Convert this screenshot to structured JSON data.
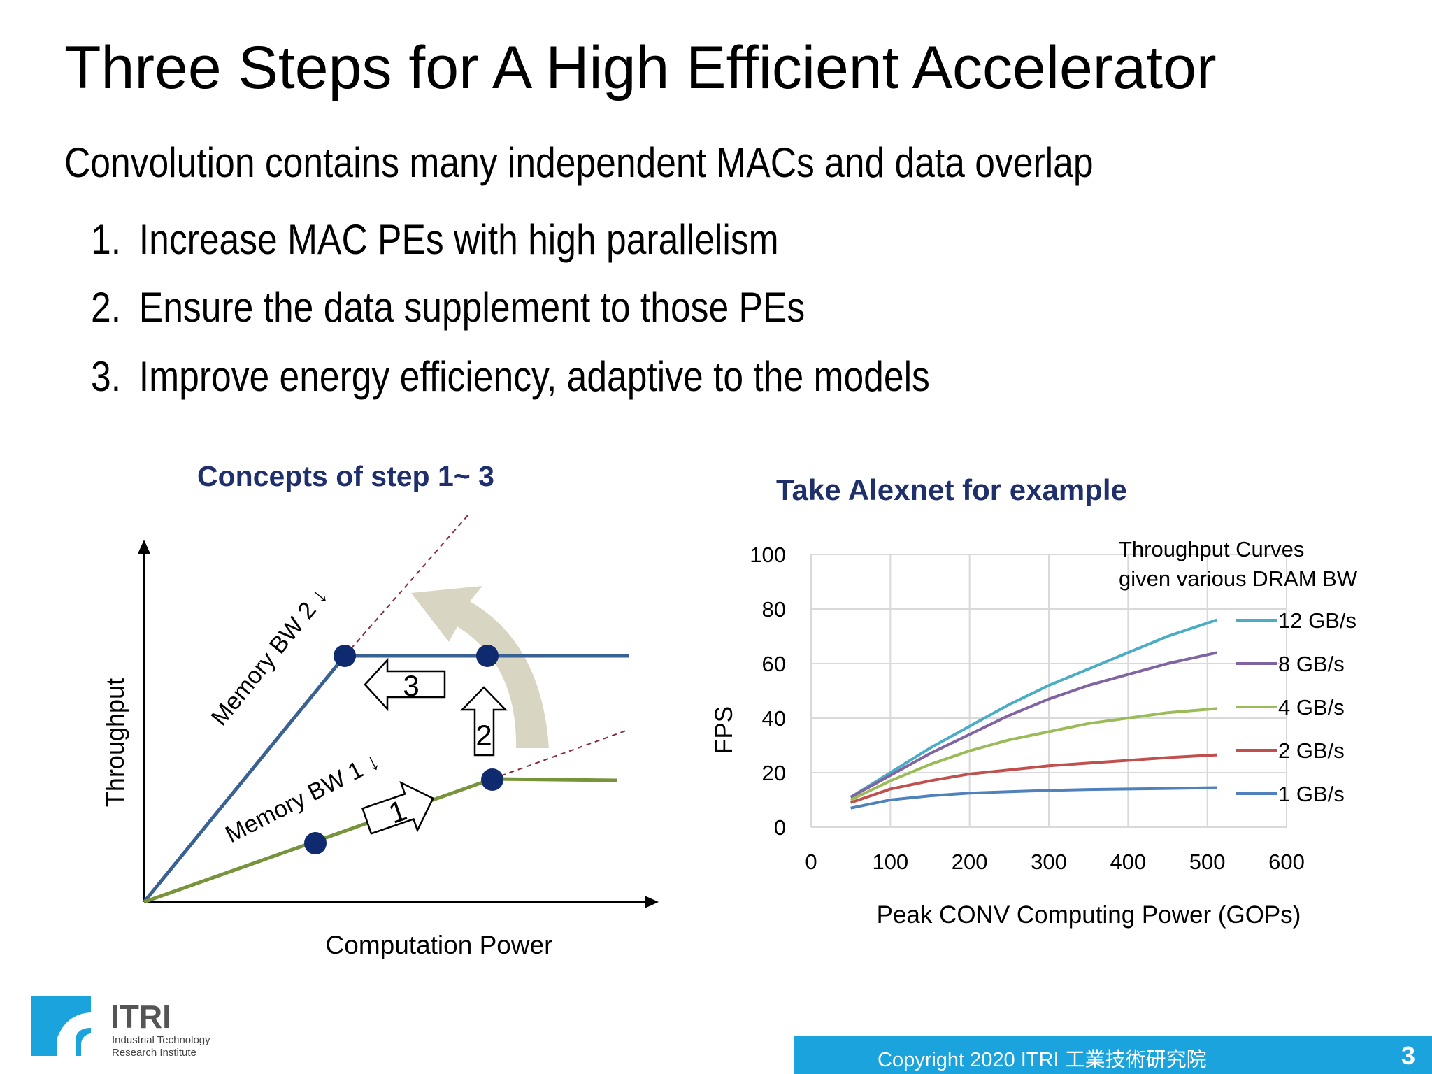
{
  "slide": {
    "title": "Three Steps for A High Efficient Accelerator",
    "subtitle": "Convolution contains many independent MACs and data overlap",
    "steps": [
      {
        "num": "1.",
        "text": "Increase MAC PEs with high parallelism"
      },
      {
        "num": "2.",
        "text": "Ensure the data supplement to those PEs"
      },
      {
        "num": "3.",
        "text": "Improve energy efficiency, adaptive to the models"
      }
    ]
  },
  "concept_diagram": {
    "title": "Concepts of step 1~ 3",
    "y_label": "Throughput",
    "x_label": "Computation Power",
    "line1_label": "Memory BW 1 ↓",
    "line2_label": "Memory BW 2 ↓",
    "arrow1_label": "1",
    "arrow2_label": "2",
    "arrow3_label": "3",
    "colors": {
      "bw1": "#77933c",
      "bw2": "#3a6194",
      "dot": "#0f2a6e",
      "curve_arrow": "#d9d5c3"
    }
  },
  "alexnet_chart": {
    "heading": "Take Alexnet for example",
    "chart_data": {
      "type": "line",
      "title": "Throughput Curves given various DRAM BW",
      "title_lines": [
        "Throughput Curves",
        "given various DRAM BW"
      ],
      "xlabel": "Peak CONV Computing Power  (GOPs)",
      "ylabel": "FPS",
      "xlim": [
        0,
        600
      ],
      "ylim": [
        0,
        100
      ],
      "x_ticks": [
        "0",
        "100",
        "200",
        "300",
        "400",
        "500",
        "600"
      ],
      "y_ticks": [
        "0",
        "20",
        "40",
        "60",
        "80",
        "100"
      ],
      "grid": true,
      "legend_position": "right",
      "x": [
        50,
        100,
        150,
        200,
        250,
        300,
        350,
        400,
        450,
        512
      ],
      "series": [
        {
          "name": "12 GB/s",
          "color": "#4bacc6",
          "values": [
            11,
            20,
            29,
            37,
            45,
            52,
            58,
            64,
            70,
            76
          ]
        },
        {
          "name": "8 GB/s",
          "color": "#8064a2",
          "values": [
            11,
            19,
            27,
            34,
            41,
            47,
            52,
            56,
            60,
            64
          ]
        },
        {
          "name": "4 GB/s",
          "color": "#9bbb59",
          "values": [
            10,
            17,
            23,
            28,
            32,
            35,
            38,
            40,
            42,
            43.5
          ]
        },
        {
          "name": "2 GB/s",
          "color": "#c0504d",
          "values": [
            9,
            14,
            17,
            19.5,
            21,
            22.5,
            23.5,
            24.5,
            25.5,
            26.5
          ]
        },
        {
          "name": "1 GB/s",
          "color": "#4f81bd",
          "values": [
            7,
            10,
            11.5,
            12.5,
            13,
            13.5,
            13.8,
            14,
            14.2,
            14.5
          ]
        }
      ]
    }
  },
  "footer": {
    "logo_name": "ITRI",
    "logo_sub1": "Industrial Technology",
    "logo_sub2": "Research Institute",
    "copyright": "Copyright 2020  ITRI  工業技術研究院",
    "page_number": "3"
  }
}
